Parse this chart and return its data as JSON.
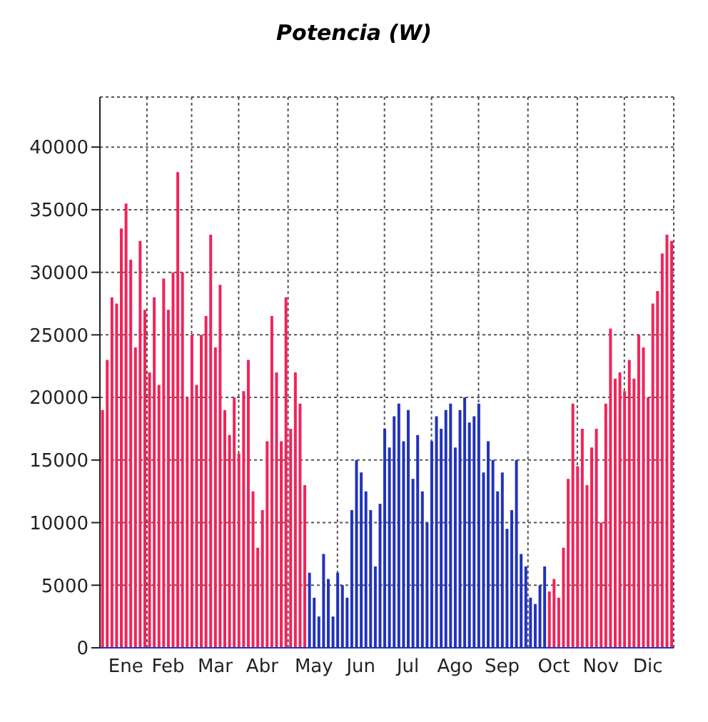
{
  "chart_data": {
    "type": "bar",
    "title": "Potencia (W)",
    "categories": [
      null,
      null,
      null,
      null,
      null,
      "Ene",
      null,
      null,
      null,
      null,
      null,
      null,
      null,
      null,
      "Feb",
      null,
      null,
      null,
      null,
      null,
      null,
      null,
      null,
      null,
      "Mar",
      null,
      null,
      null,
      null,
      null,
      null,
      null,
      null,
      null,
      "Abr",
      null,
      null,
      null,
      null,
      null,
      null,
      null,
      null,
      null,
      null,
      "May",
      null,
      null,
      null,
      null,
      null,
      null,
      null,
      null,
      null,
      "Jun",
      null,
      null,
      null,
      null,
      null,
      null,
      null,
      null,
      null,
      "Jul",
      null,
      null,
      null,
      null,
      null,
      null,
      null,
      null,
      null,
      "Ago",
      null,
      null,
      null,
      null,
      null,
      null,
      null,
      null,
      null,
      "Sep",
      null,
      null,
      null,
      null,
      null,
      null,
      null,
      null,
      null,
      null,
      "Oct",
      null,
      null,
      null,
      null,
      null,
      null,
      null,
      null,
      null,
      "Nov",
      null,
      null,
      null,
      null,
      null,
      null,
      null,
      null,
      null,
      "Dic",
      null,
      null,
      null,
      null,
      null
    ],
    "values": [
      19000,
      23000,
      28000,
      27500,
      33500,
      35500,
      31000,
      24000,
      32500,
      27000,
      22000,
      28000,
      21000,
      29500,
      27000,
      30000,
      38000,
      30000,
      20000,
      25000,
      21000,
      25000,
      26500,
      33000,
      24000,
      29000,
      19000,
      17000,
      20000,
      15500,
      20500,
      23000,
      12500,
      8000,
      11000,
      16500,
      26500,
      22000,
      16500,
      28000,
      17500,
      22000,
      19500,
      13000,
      6000,
      4000,
      2500,
      7500,
      5500,
      2500,
      6000,
      5000,
      4000,
      11000,
      15000,
      14000,
      12500,
      11000,
      6500,
      11500,
      17500,
      16000,
      18500,
      19500,
      16500,
      19000,
      13500,
      17000,
      12500,
      10000,
      16500,
      18500,
      17500,
      19000,
      19500,
      16000,
      19000,
      20000,
      18000,
      18500,
      19500,
      14000,
      16500,
      15000,
      12500,
      14000,
      9500,
      11000,
      15000,
      7500,
      6500,
      4000,
      3500,
      5000,
      6500,
      4500,
      5500,
      4000,
      8000,
      13500,
      19500,
      14500,
      17500,
      13000,
      16000,
      17500,
      10000,
      19500,
      25500,
      21500,
      22000,
      20500,
      23000,
      21500,
      25000,
      24000,
      20000,
      27500,
      28500,
      31500,
      33000,
      32500
    ],
    "colors": [
      "#f0245a",
      "#f0245a",
      "#f0245a",
      "#f0245a",
      "#f0245a",
      "#f0245a",
      "#f0245a",
      "#f0245a",
      "#f0245a",
      "#f0245a",
      "#f0245a",
      "#f0245a",
      "#f0245a",
      "#f0245a",
      "#f0245a",
      "#f0245a",
      "#f0245a",
      "#f0245a",
      "#f0245a",
      "#f0245a",
      "#f0245a",
      "#f0245a",
      "#f0245a",
      "#f0245a",
      "#f0245a",
      "#f0245a",
      "#f0245a",
      "#f0245a",
      "#f0245a",
      "#f0245a",
      "#f0245a",
      "#f0245a",
      "#f0245a",
      "#f0245a",
      "#f0245a",
      "#f0245a",
      "#f0245a",
      "#f0245a",
      "#f0245a",
      "#f0245a",
      "#f0245a",
      "#f0245a",
      "#f0245a",
      "#f0245a",
      "#2233bb",
      "#2233bb",
      "#2233bb",
      "#2233bb",
      "#2233bb",
      "#2233bb",
      "#2233bb",
      "#2233bb",
      "#2233bb",
      "#2233bb",
      "#2233bb",
      "#2233bb",
      "#2233bb",
      "#2233bb",
      "#2233bb",
      "#2233bb",
      "#2233bb",
      "#2233bb",
      "#2233bb",
      "#2233bb",
      "#2233bb",
      "#2233bb",
      "#2233bb",
      "#2233bb",
      "#2233bb",
      "#2233bb",
      "#2233bb",
      "#2233bb",
      "#2233bb",
      "#2233bb",
      "#2233bb",
      "#2233bb",
      "#2233bb",
      "#2233bb",
      "#2233bb",
      "#2233bb",
      "#2233bb",
      "#2233bb",
      "#2233bb",
      "#2233bb",
      "#2233bb",
      "#2233bb",
      "#2233bb",
      "#2233bb",
      "#2233bb",
      "#2233bb",
      "#2233bb",
      "#2233bb",
      "#2233bb",
      "#2233bb",
      "#2233bb",
      "#f0245a",
      "#f0245a",
      "#f0245a",
      "#f0245a",
      "#f0245a",
      "#f0245a",
      "#f0245a",
      "#f0245a",
      "#f0245a",
      "#f0245a",
      "#f0245a",
      "#f0245a",
      "#f0245a",
      "#f0245a",
      "#f0245a",
      "#f0245a",
      "#f0245a",
      "#f0245a",
      "#f0245a",
      "#f0245a",
      "#f0245a",
      "#f0245a",
      "#f0245a",
      "#f0245a",
      "#f0245a",
      "#f0245a",
      "#f0245a"
    ],
    "ylim": [
      0,
      44000
    ],
    "yticks": [
      0,
      5000,
      10000,
      15000,
      20000,
      25000,
      30000,
      35000,
      40000
    ],
    "grid": true
  }
}
